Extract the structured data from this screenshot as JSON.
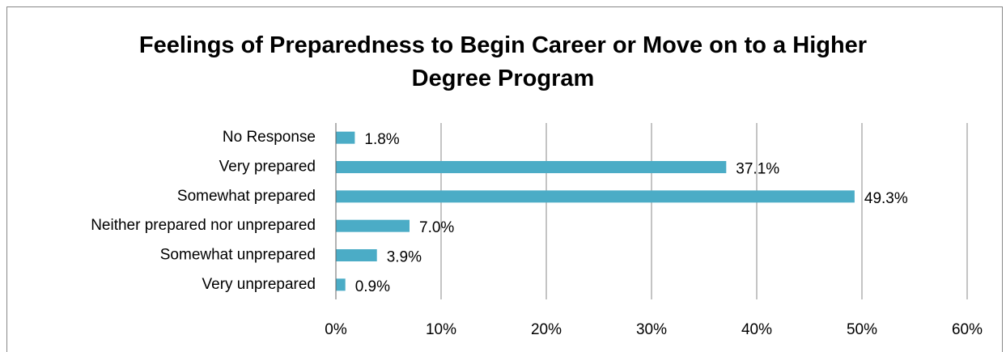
{
  "chart_data": {
    "type": "hbar",
    "title": "Feelings of Preparedness to Begin Career or Move on to a Higher Degree Program",
    "categories": [
      "No Response",
      "Very prepared",
      "Somewhat prepared",
      "Neither prepared nor unprepared",
      "Somewhat unprepared",
      "Very unprepared"
    ],
    "values": [
      1.8,
      37.1,
      49.3,
      7.0,
      3.9,
      0.9
    ],
    "value_labels": [
      "1.8%",
      "37.1%",
      "49.3%",
      "7.0%",
      "3.9%",
      "0.9%"
    ],
    "color": "#4bacc6",
    "xlim": [
      0,
      60
    ],
    "xticks": [
      {
        "value": 0,
        "label": "0%"
      },
      {
        "value": 10,
        "label": "10%"
      },
      {
        "value": 20,
        "label": "20%"
      },
      {
        "value": 30,
        "label": "30%"
      },
      {
        "value": 40,
        "label": "40%"
      },
      {
        "value": 50,
        "label": "50%"
      },
      {
        "value": 60,
        "label": "60%"
      }
    ],
    "grid": true
  }
}
